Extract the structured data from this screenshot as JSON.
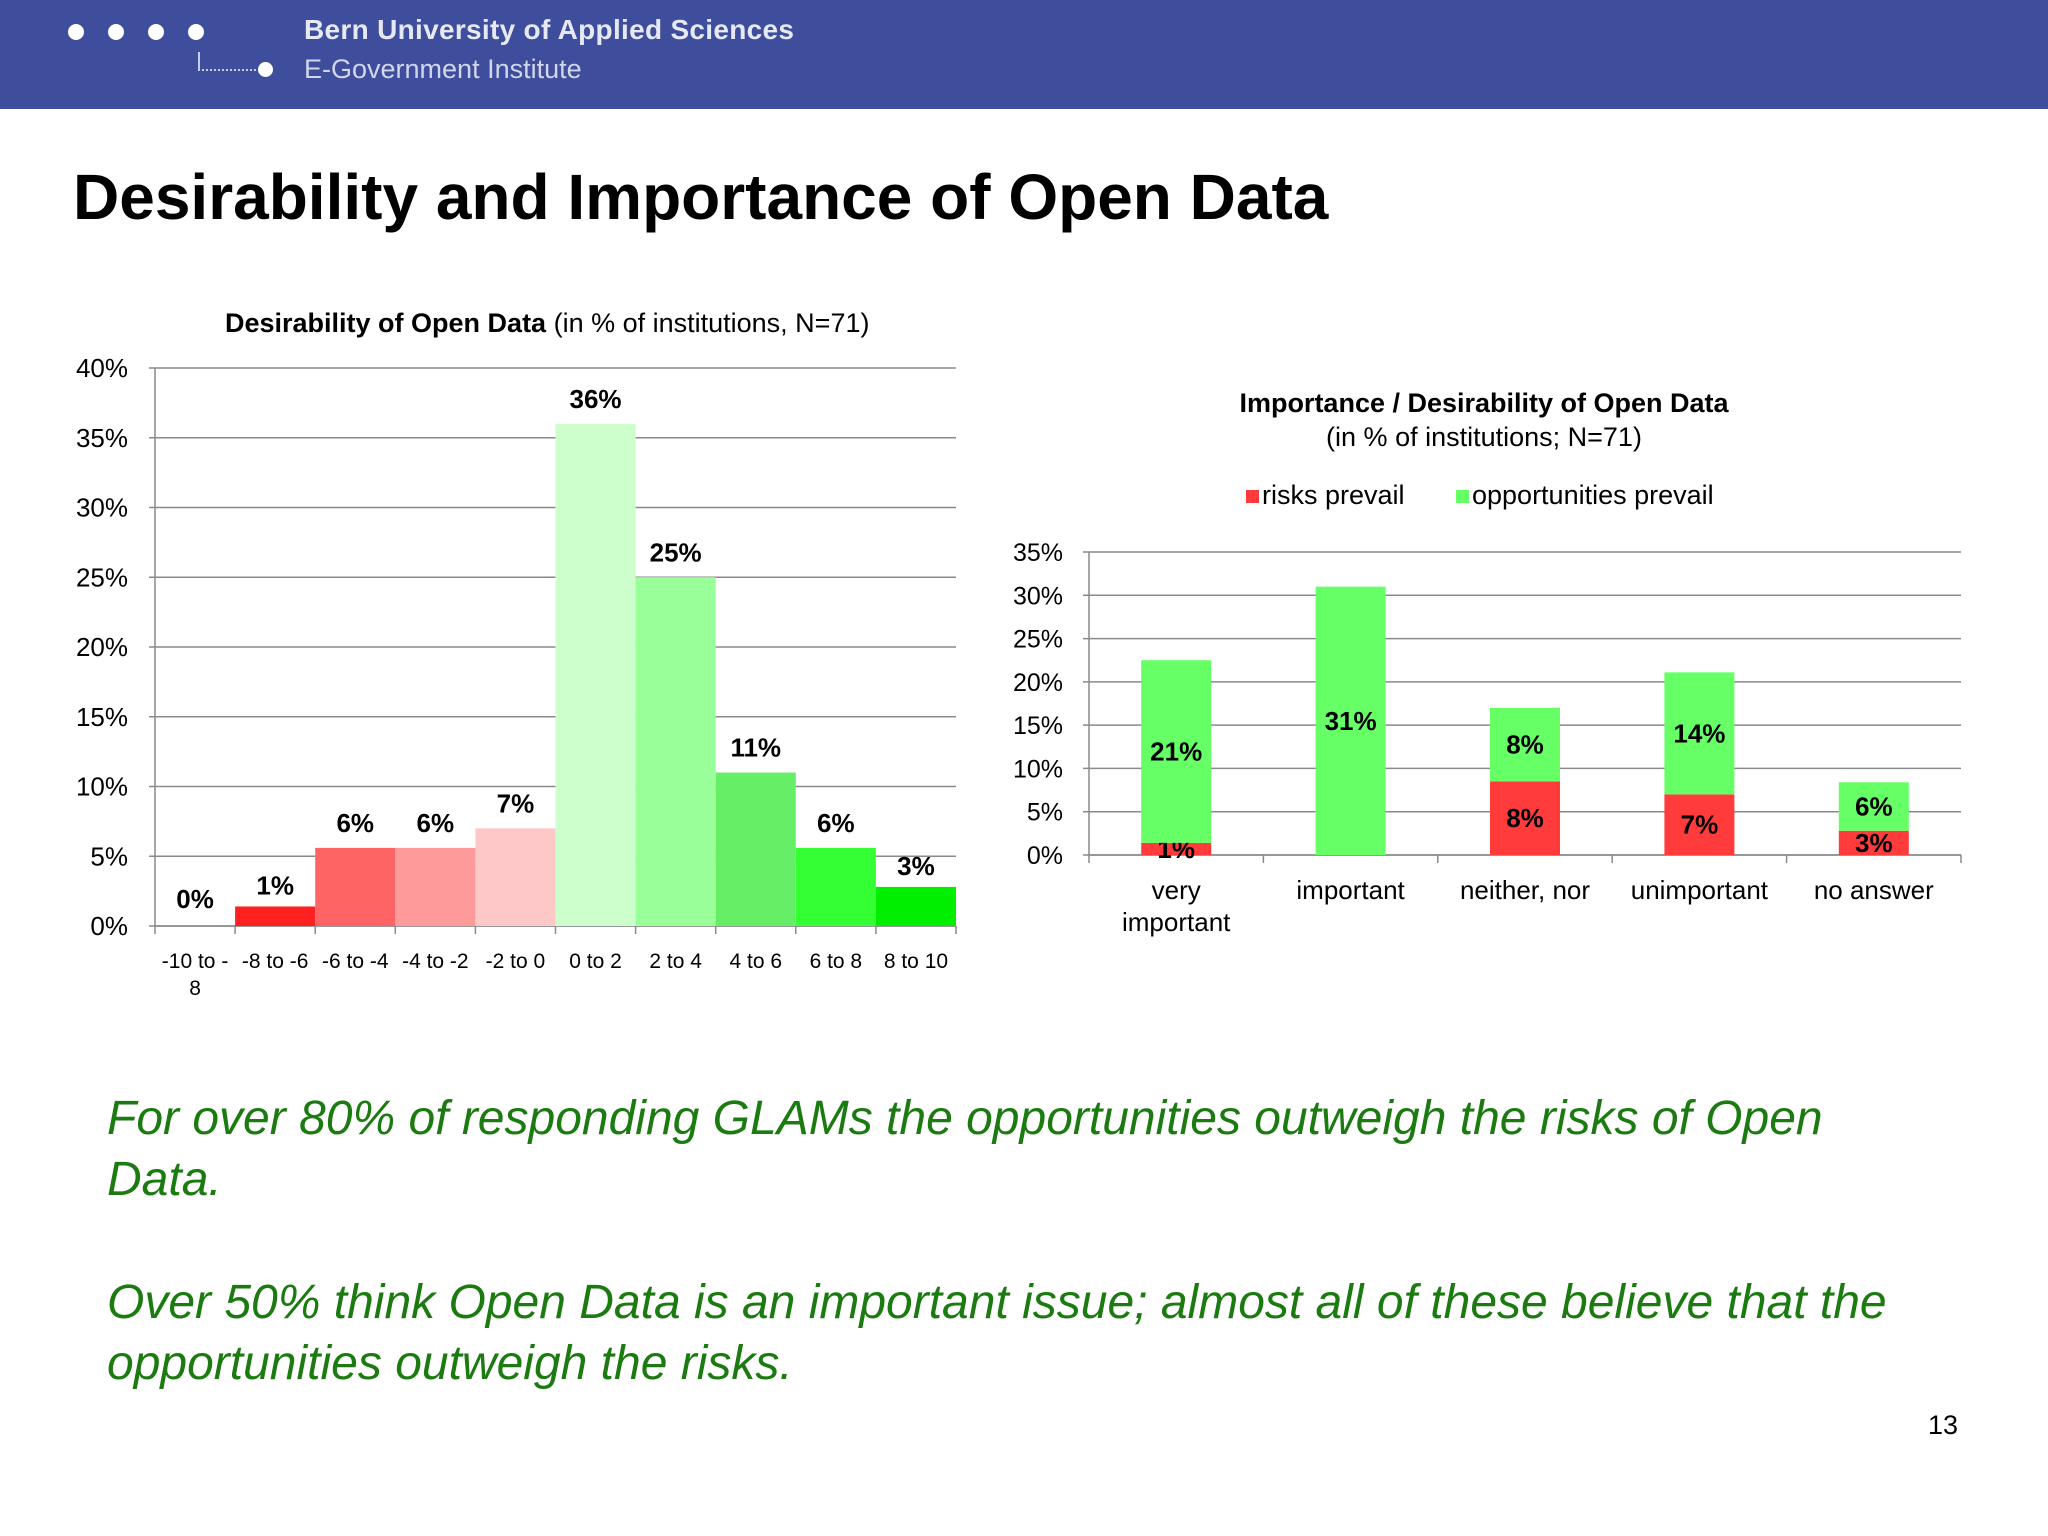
{
  "header": {
    "university": "Bern University of Applied Sciences",
    "institute": "E-Government Institute"
  },
  "slide": {
    "title": "Desirability and Importance of Open Data",
    "summary_1": "For over 80% of responding GLAMs the opportunities outweigh the risks of Open Data.",
    "summary_2": "Over 50% think Open Data is an important issue; almost all of these believe that the opportunities outweigh the risks.",
    "page_number": "13"
  },
  "colors": {
    "header_band": "#3f4e9c",
    "risks": "#ff3b3b",
    "opportunities": "#66ff66",
    "summary_text": "#1b7a10"
  },
  "chart_data": [
    {
      "type": "bar",
      "title": "Desirability of Open Data",
      "subtitle": "(in % of institutions, N=71)",
      "categories": [
        "-10 to -8",
        "-8 to -6",
        "-6 to -4",
        "-4 to -2",
        "-2 to 0",
        "0 to 2",
        "2 to 4",
        "4 to 6",
        "6 to 8",
        "8 to 10"
      ],
      "tick_lines": [
        [
          "-10 to -",
          "8"
        ],
        [
          "-8 to -6"
        ],
        [
          "-6 to -4"
        ],
        [
          "-4 to -2"
        ],
        [
          "-2 to 0"
        ],
        [
          "0 to 2"
        ],
        [
          "2 to 4"
        ],
        [
          "4 to 6"
        ],
        [
          "6 to 8"
        ],
        [
          "8 to 10"
        ]
      ],
      "values": [
        0,
        1.4,
        5.6,
        5.6,
        7,
        36,
        25,
        11,
        5.6,
        2.8
      ],
      "labels": [
        "0%",
        "1%",
        "6%",
        "6%",
        "7%",
        "36%",
        "25%",
        "11%",
        "6%",
        "3%"
      ],
      "colors": [
        "#ff2222",
        "#ff2020",
        "#ff6464",
        "#ff9a9a",
        "#ffc8c8",
        "#ccffcc",
        "#99ff99",
        "#66ee66",
        "#33ff33",
        "#00ee00"
      ],
      "yticks": [
        "0%",
        "5%",
        "10%",
        "15%",
        "20%",
        "25%",
        "30%",
        "35%",
        "40%"
      ],
      "ylim": [
        0,
        40
      ],
      "grid": true,
      "xlabel": "",
      "ylabel": ""
    },
    {
      "type": "bar",
      "stacked": true,
      "title": "Importance / Desirability of Open Data",
      "subtitle": "(in % of institutions; N=71)",
      "categories": [
        "very important",
        "important",
        "neither, nor",
        "unimportant",
        "no answer"
      ],
      "tick_lines": [
        [
          "very",
          "important"
        ],
        [
          "important"
        ],
        [
          "neither, nor"
        ],
        [
          "unimportant"
        ],
        [
          "no answer"
        ]
      ],
      "series": [
        {
          "name": "risks prevail",
          "color": "#ff3b3b",
          "values": [
            1.4,
            0,
            8.5,
            7,
            2.8
          ],
          "labels": [
            "1%",
            "",
            "8%",
            "7%",
            "3%"
          ]
        },
        {
          "name": "opportunities prevail",
          "color": "#66ff66",
          "values": [
            21.1,
            31,
            8.5,
            14.1,
            5.6
          ],
          "labels": [
            "21%",
            "31%",
            "8%",
            "14%",
            "6%"
          ]
        }
      ],
      "yticks": [
        "0%",
        "5%",
        "10%",
        "15%",
        "20%",
        "25%",
        "30%",
        "35%"
      ],
      "ylim": [
        0,
        35
      ],
      "legend": "top",
      "grid": true,
      "xlabel": "",
      "ylabel": ""
    }
  ]
}
